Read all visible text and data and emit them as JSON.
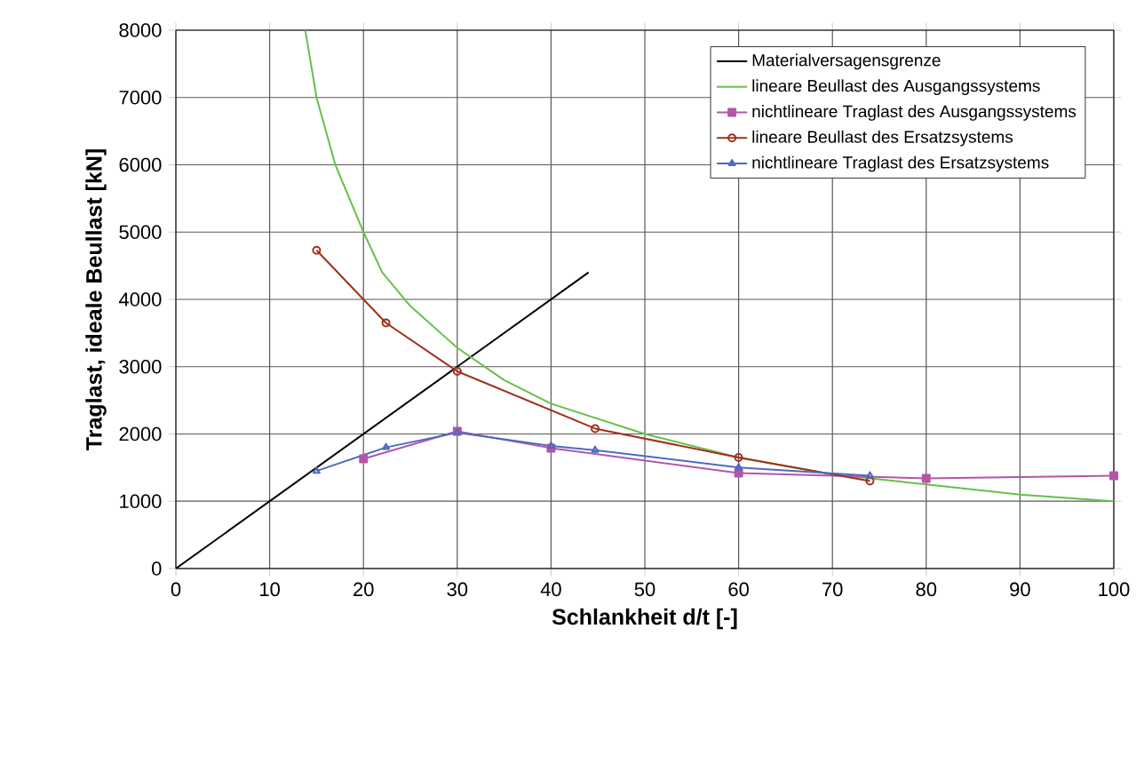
{
  "chart_data": {
    "type": "line",
    "xlabel": "Schlankheit d/t [-]",
    "ylabel": "Traglast, ideale Beullast [kN]",
    "xlim": [
      0,
      100
    ],
    "ylim": [
      0,
      8000
    ],
    "xticks": [
      0,
      10,
      20,
      30,
      40,
      50,
      60,
      70,
      80,
      90,
      100
    ],
    "yticks": [
      0,
      1000,
      2000,
      3000,
      4000,
      5000,
      6000,
      7000,
      8000
    ],
    "grid": true,
    "legend": "top right",
    "series": [
      {
        "name": "Materialversagensgrenze",
        "color": "#000000",
        "marker": "none",
        "x": [
          0,
          44
        ],
        "values": [
          0,
          4400
        ]
      },
      {
        "name": "lineare Beullast des Ausgangssystems",
        "color": "#66c04a",
        "marker": "none",
        "x": [
          13.8,
          15,
          17,
          20,
          22,
          25,
          30,
          35,
          40,
          50,
          60,
          70,
          80,
          90,
          100
        ],
        "values": [
          8000,
          7000,
          6000,
          5000,
          4400,
          3900,
          3280,
          2800,
          2450,
          2000,
          1650,
          1400,
          1250,
          1100,
          1000
        ]
      },
      {
        "name": "nichtlineare Traglast des Ausgangssystems",
        "color": "#b455aa",
        "marker": "square",
        "x": [
          20,
          30,
          40,
          60,
          80,
          100
        ],
        "values": [
          1630,
          2040,
          1790,
          1420,
          1340,
          1380
        ]
      },
      {
        "name": "lineare Beullast des Ersatzsystems",
        "color": "#a0301e",
        "marker": "circle",
        "x": [
          15,
          22.4,
          30,
          44.7,
          60,
          74
        ],
        "values": [
          4730,
          3650,
          2930,
          2080,
          1650,
          1300
        ]
      },
      {
        "name": "nichtlineare Traglast des Ersatzsystems",
        "color": "#4a6cc0",
        "marker": "triangle",
        "x": [
          15,
          22.4,
          30,
          40,
          44.7,
          60,
          74
        ],
        "values": [
          1450,
          1800,
          2020,
          1820,
          1760,
          1500,
          1380
        ]
      }
    ]
  }
}
